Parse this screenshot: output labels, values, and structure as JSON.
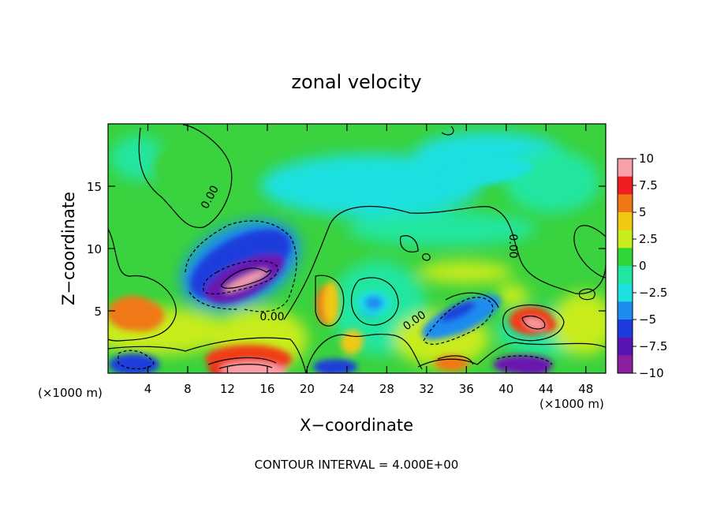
{
  "chart_data": {
    "type": "heatmap",
    "title": "zonal velocity",
    "xlabel": "X−coordinate",
    "ylabel": "Z−coordinate",
    "x_unit_left": "(×1000 m)",
    "x_unit_right": "(×1000 m)",
    "footer": "CONTOUR INTERVAL = 4.000E+00",
    "xlim": [
      0,
      50
    ],
    "ylim": [
      0,
      20
    ],
    "x_ticks": [
      4,
      8,
      12,
      16,
      20,
      24,
      28,
      32,
      36,
      40,
      44,
      48
    ],
    "x_tick_labels": [
      "4",
      "8",
      "12",
      "16",
      "20",
      "24",
      "28",
      "32",
      "36",
      "40",
      "44",
      "48"
    ],
    "y_ticks": [
      5,
      10,
      15
    ],
    "y_tick_labels": [
      "5",
      "10",
      "15"
    ],
    "colorbar": {
      "range": [
        -10,
        10
      ],
      "ticks": [
        10,
        7.5,
        5,
        2.5,
        0,
        -2.5,
        -5,
        -7.5,
        -10
      ],
      "tick_labels": [
        "10",
        "7.5",
        "5",
        "2.5",
        "0",
        "−2.5",
        "−5",
        "−7.5",
        "−10"
      ],
      "colors": [
        "#f8a0a8",
        "#f01e1e",
        "#f07814",
        "#f0c814",
        "#c8ec1e",
        "#2ed63a",
        "#22e6a0",
        "#1ee0e0",
        "#1e8cf0",
        "#1e3cdc",
        "#5a14b4",
        "#8c1ea0"
      ]
    },
    "contour_labels": [
      "0.00",
      "0.00",
      "0.00",
      "0.00",
      "0.00"
    ],
    "features": [
      {
        "x": 13.8,
        "z": 7.8,
        "u": -10
      },
      {
        "x": 14.0,
        "z": 0.6,
        "u": 9
      },
      {
        "x": 15.0,
        "z": 0.3,
        "u": 11
      },
      {
        "x": 2.5,
        "z": 4.8,
        "u": 6
      },
      {
        "x": 42.5,
        "z": 4.2,
        "u": 8
      },
      {
        "x": 42.5,
        "z": 0.4,
        "u": -9
      },
      {
        "x": 22.5,
        "z": 0.4,
        "u": -8
      },
      {
        "x": 2.5,
        "z": 0.5,
        "u": -8
      },
      {
        "x": 36.0,
        "z": 4.5,
        "u": -6
      },
      {
        "x": 26.5,
        "z": 5.5,
        "u": -4
      },
      {
        "x": 22.0,
        "z": 5.5,
        "u": 5
      },
      {
        "x": 24.5,
        "z": 2.5,
        "u": 4
      },
      {
        "x": 34.5,
        "z": 0.8,
        "u": 5
      },
      {
        "x": 8.0,
        "z": 16.5,
        "u": 1.2
      },
      {
        "x": 38.0,
        "z": 16.0,
        "u": -2.5
      }
    ]
  }
}
